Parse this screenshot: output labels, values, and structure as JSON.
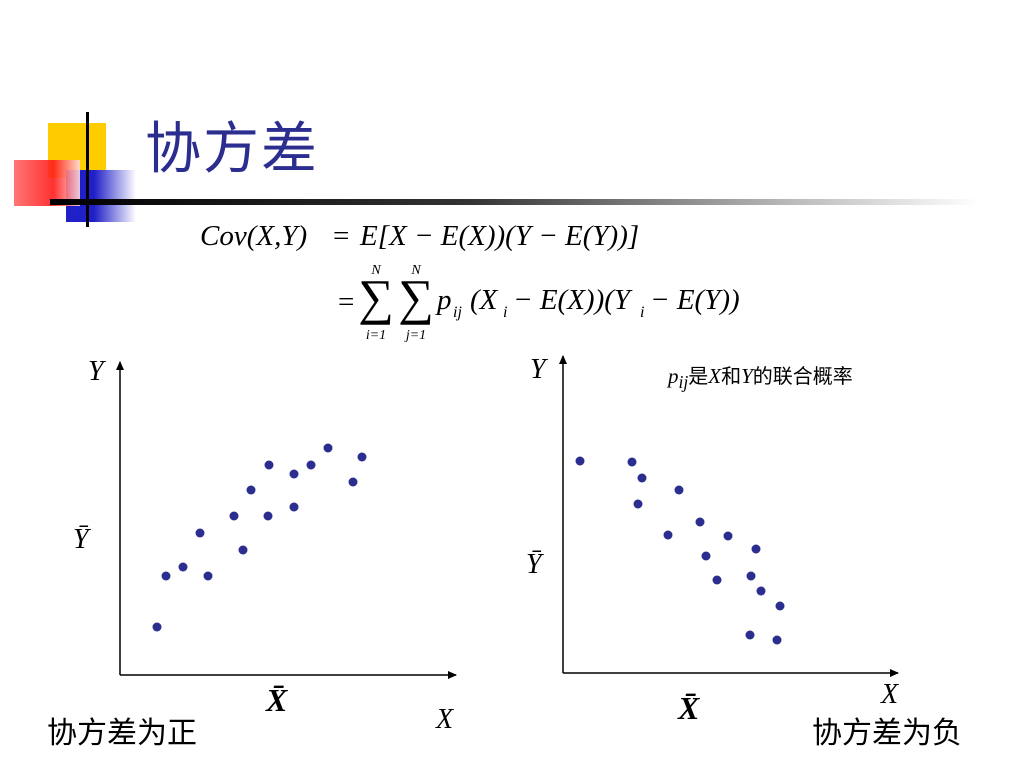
{
  "slide": {
    "title": "协方差",
    "note": {
      "p": "p",
      "sub": "ij",
      "text1": "是",
      "x": "X",
      "text2": "和",
      "y": "Y",
      "text3": "的联合概率"
    },
    "caption_left": "协方差为正",
    "caption_right": "协方差为负"
  },
  "formula": {
    "line1": {
      "lhs": "Cov(X,Y)",
      "eq": "=",
      "rhs": "E[X − E(X))(Y − E(Y))]"
    },
    "line2": {
      "eq": "=",
      "sum1": {
        "top": "N",
        "bottom": "i=1"
      },
      "sum2": {
        "top": "N",
        "bottom": "j=1"
      },
      "term_p": "p",
      "term_sub": "ij",
      "term_rest": "(X",
      "xi_sub": "i",
      "mid": " − E(X))(Y",
      "yi_sub": "i",
      "end": " − E(Y))"
    }
  },
  "chart_data": [
    {
      "type": "scatter",
      "title": "",
      "xlabel": "X",
      "ylabel": "Y",
      "mean_labels": {
        "x": "X̄",
        "y": "Ȳ"
      },
      "points": [
        [
          157,
          627
        ],
        [
          166,
          576
        ],
        [
          183,
          567
        ],
        [
          208,
          576
        ],
        [
          200,
          533
        ],
        [
          243,
          550
        ],
        [
          234,
          516
        ],
        [
          251,
          490
        ],
        [
          268,
          516
        ],
        [
          269,
          465
        ],
        [
          294,
          507
        ],
        [
          294,
          474
        ],
        [
          311,
          465
        ],
        [
          328,
          448
        ],
        [
          353,
          482
        ],
        [
          362,
          457
        ]
      ]
    },
    {
      "type": "scatter",
      "title": "",
      "xlabel": "X",
      "ylabel": "Y",
      "mean_labels": {
        "x": "X̄",
        "y": "Ȳ"
      },
      "points": [
        [
          580,
          461
        ],
        [
          632,
          462
        ],
        [
          642,
          478
        ],
        [
          638,
          504
        ],
        [
          668,
          535
        ],
        [
          679,
          490
        ],
        [
          700,
          522
        ],
        [
          706,
          556
        ],
        [
          717,
          580
        ],
        [
          728,
          536
        ],
        [
          751,
          576
        ],
        [
          756,
          549
        ],
        [
          761,
          591
        ],
        [
          750,
          635
        ],
        [
          777,
          640
        ],
        [
          780,
          606
        ]
      ]
    }
  ]
}
